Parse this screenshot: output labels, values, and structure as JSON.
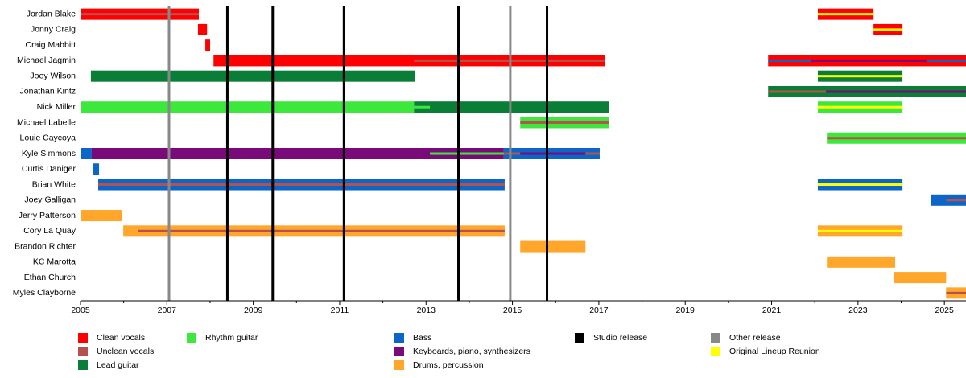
{
  "chart_data": {
    "type": "timeline",
    "xlim": [
      2005,
      2025.5
    ],
    "xticks": [
      2005,
      2007,
      2009,
      2011,
      2013,
      2015,
      2017,
      2019,
      2021,
      2023,
      2025
    ],
    "xminorticks": [
      2006,
      2008,
      2010,
      2012,
      2014,
      2016,
      2018,
      2020,
      2022,
      2024
    ],
    "roles": [
      {
        "name": "Clean vocals",
        "color": "#ff0000"
      },
      {
        "name": "Unclean vocals",
        "color": "#b5524f"
      },
      {
        "name": "Lead guitar",
        "color": "#0a7d36"
      },
      {
        "name": "Rhythm guitar",
        "color": "#3ce83c"
      },
      {
        "name": "Bass",
        "color": "#0b66c8"
      },
      {
        "name": "Keyboards, piano, synthesizers",
        "color": "#7a0a7a"
      },
      {
        "name": "Drums, percussion",
        "color": "#ffa62b"
      },
      {
        "name": "Studio release",
        "color": "#000000"
      },
      {
        "name": "Other release",
        "color": "#888888"
      },
      {
        "name": "Original Lineup Reunion",
        "color": "#ffff00"
      }
    ],
    "releases": [
      {
        "role": 8,
        "x": 2007.05
      },
      {
        "role": 7,
        "x": 2008.4
      },
      {
        "role": 7,
        "x": 2009.45
      },
      {
        "role": 7,
        "x": 2011.1
      },
      {
        "role": 7,
        "x": 2013.75
      },
      {
        "role": 8,
        "x": 2014.95
      },
      {
        "role": 7,
        "x": 2015.8
      }
    ],
    "members": [
      {
        "name": "Jordan Blake",
        "bars": [
          {
            "role": 0,
            "start": 2005,
            "end": 2007.74
          },
          {
            "role": 0,
            "start": 2022.07,
            "end": 2023.36
          }
        ],
        "stripes": [
          {
            "role": 1,
            "start": 2005,
            "end": 2007.74
          },
          {
            "role": 9,
            "start": 2022.07,
            "end": 2023.36
          }
        ]
      },
      {
        "name": "Jonny Craig",
        "bars": [
          {
            "role": 0,
            "start": 2007.72,
            "end": 2007.93
          },
          {
            "role": 0,
            "start": 2023.36,
            "end": 2024.03
          }
        ],
        "stripes": [
          {
            "role": 9,
            "start": 2023.36,
            "end": 2024.03
          }
        ]
      },
      {
        "name": "Craig Mabbitt",
        "bars": [
          {
            "role": 0,
            "start": 2007.89,
            "end": 2008.0
          }
        ],
        "stripes": []
      },
      {
        "name": "Michael Jagmin",
        "bars": [
          {
            "role": 0,
            "start": 2008.08,
            "end": 2017.15
          },
          {
            "role": 0,
            "start": 2020.92,
            "end": 2025.5
          }
        ],
        "stripes": [
          {
            "role": 1,
            "start": 2012.72,
            "end": 2017.15
          },
          {
            "role": 4,
            "start": 2020.92,
            "end": 2021.92
          },
          {
            "role": 5,
            "start": 2021.92,
            "end": 2024.6
          },
          {
            "role": 4,
            "start": 2024.6,
            "end": 2025.5
          }
        ]
      },
      {
        "name": "Joey Wilson",
        "bars": [
          {
            "role": 2,
            "start": 2005.24,
            "end": 2012.74
          },
          {
            "role": 2,
            "start": 2022.07,
            "end": 2024.03
          }
        ],
        "stripes": [
          {
            "role": 9,
            "start": 2022.07,
            "end": 2024.03
          }
        ]
      },
      {
        "name": "Jonathan Kintz",
        "bars": [
          {
            "role": 2,
            "start": 2020.92,
            "end": 2025.5
          }
        ],
        "stripes": [
          {
            "role": 1,
            "start": 2020.92,
            "end": 2022.26
          },
          {
            "role": 5,
            "start": 2022.26,
            "end": 2025.5
          }
        ]
      },
      {
        "name": "Nick Miller",
        "bars": [
          {
            "role": 3,
            "start": 2005,
            "end": 2012.72
          },
          {
            "role": 2,
            "start": 2012.72,
            "end": 2017.23
          },
          {
            "role": 3,
            "start": 2022.07,
            "end": 2024.03
          }
        ],
        "stripes": [
          {
            "role": 3,
            "start": 2012.72,
            "end": 2013.09
          },
          {
            "role": 9,
            "start": 2022.07,
            "end": 2024.03
          }
        ]
      },
      {
        "name": "Michael Labelle",
        "bars": [
          {
            "role": 3,
            "start": 2015.18,
            "end": 2017.23
          }
        ],
        "stripes": [
          {
            "role": 1,
            "start": 2015.18,
            "end": 2017.23
          }
        ]
      },
      {
        "name": "Louie Caycoya",
        "bars": [
          {
            "role": 3,
            "start": 2022.28,
            "end": 2025.5
          }
        ],
        "stripes": [
          {
            "role": 1,
            "start": 2022.28,
            "end": 2025.5
          }
        ]
      },
      {
        "name": "Kyle Simmons",
        "bars": [
          {
            "role": 4,
            "start": 2005,
            "end": 2005.26
          },
          {
            "role": 5,
            "start": 2005.26,
            "end": 2014.8
          },
          {
            "role": 4,
            "start": 2014.8,
            "end": 2017.02
          }
        ],
        "stripes": [
          {
            "role": 3,
            "start": 2013.09,
            "end": 2014.8
          },
          {
            "role": 1,
            "start": 2014.8,
            "end": 2015.18
          },
          {
            "role": 5,
            "start": 2015.18,
            "end": 2016.69
          },
          {
            "role": 1,
            "start": 2016.69,
            "end": 2017.02
          }
        ]
      },
      {
        "name": "Curtis Daniger",
        "bars": [
          {
            "role": 4,
            "start": 2005.28,
            "end": 2005.43
          }
        ],
        "stripes": []
      },
      {
        "name": "Brian White",
        "bars": [
          {
            "role": 4,
            "start": 2005.41,
            "end": 2014.82
          },
          {
            "role": 4,
            "start": 2022.07,
            "end": 2024.03
          }
        ],
        "stripes": [
          {
            "role": 1,
            "start": 2005.41,
            "end": 2014.82
          },
          {
            "role": 9,
            "start": 2022.07,
            "end": 2024.03
          }
        ]
      },
      {
        "name": "Joey Galligan",
        "bars": [
          {
            "role": 4,
            "start": 2024.68,
            "end": 2025.5
          }
        ],
        "stripes": [
          {
            "role": 1,
            "start": 2025.04,
            "end": 2025.5
          }
        ]
      },
      {
        "name": "Jerry Patterson",
        "bars": [
          {
            "role": 6,
            "start": 2005,
            "end": 2005.97
          }
        ],
        "stripes": []
      },
      {
        "name": "Cory La Quay",
        "bars": [
          {
            "role": 6,
            "start": 2005.99,
            "end": 2014.82
          },
          {
            "role": 6,
            "start": 2022.07,
            "end": 2024.03
          }
        ],
        "stripes": [
          {
            "role": 1,
            "start": 2006.34,
            "end": 2014.82
          },
          {
            "role": 9,
            "start": 2022.07,
            "end": 2024.03
          }
        ]
      },
      {
        "name": "Brandon Richter",
        "bars": [
          {
            "role": 6,
            "start": 2015.18,
            "end": 2016.69
          }
        ],
        "stripes": []
      },
      {
        "name": "KC Marotta",
        "bars": [
          {
            "role": 6,
            "start": 2022.28,
            "end": 2023.86
          }
        ],
        "stripes": []
      },
      {
        "name": "Ethan Church",
        "bars": [
          {
            "role": 6,
            "start": 2023.84,
            "end": 2025.04
          }
        ],
        "stripes": []
      },
      {
        "name": "Myles Clayborne",
        "bars": [
          {
            "role": 6,
            "start": 2025.04,
            "end": 2025.5
          }
        ],
        "stripes": [
          {
            "role": 1,
            "start": 2025.04,
            "end": 2025.5
          }
        ]
      }
    ]
  }
}
